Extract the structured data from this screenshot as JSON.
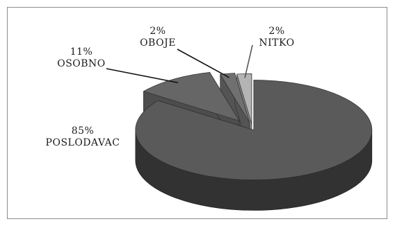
{
  "chart_data": {
    "type": "pie",
    "title": "",
    "three_d": true,
    "exploded": true,
    "slices": [
      {
        "label": "POSLODAVAC",
        "value": 85,
        "value_label": "85%",
        "color": "#5a5a5a"
      },
      {
        "label": "OSOBNO",
        "value": 11,
        "value_label": "11%",
        "color": "#666666"
      },
      {
        "label": "OBOJE",
        "value": 2,
        "value_label": "2%",
        "color": "#707070"
      },
      {
        "label": "NITKO",
        "value": 2,
        "value_label": "2%",
        "color": "#b4b4b4"
      }
    ]
  }
}
